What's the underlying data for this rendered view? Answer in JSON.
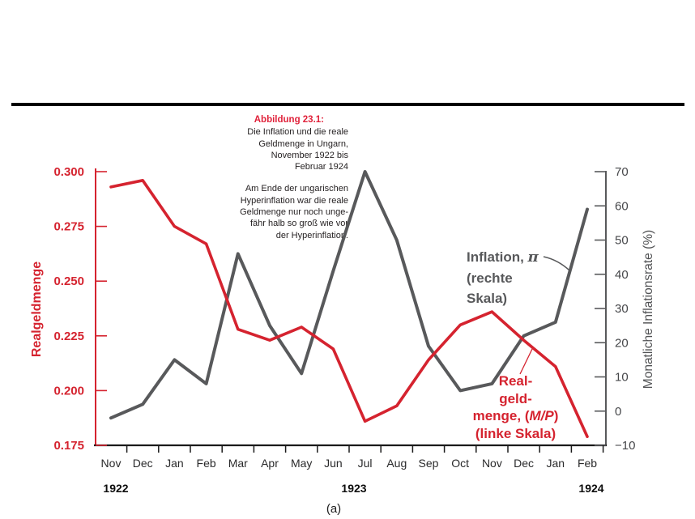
{
  "caption": {
    "title": "Abbildung 23.1:",
    "para1": [
      "Die Inflation und die reale",
      "Geldmenge in Ungarn,",
      "November 1922 bis",
      "Februar 1924"
    ],
    "para2": [
      "Am Ende der ungarischen",
      "Hyperinflation war die reale",
      "Geldmenge nur noch unge-",
      "fähr halb so groß wie vor",
      "der Hyperinflation."
    ]
  },
  "annotations": {
    "inflation": {
      "line1_pre": "Inflation, ",
      "line1_pi": "π",
      "line2": "(rechte",
      "line3": "Skala)"
    },
    "real_money": {
      "line1": "Real-",
      "line2": "geld-",
      "line3_pre": "menge, (",
      "line3_italic": "M/P",
      "line3_post": ")",
      "line4": "(linke Skala)"
    }
  },
  "subfigure_label": "(a)",
  "colors": {
    "red": "#d5232f",
    "gray_line": "#58595b",
    "right_axis_text": "#46474a",
    "month_text": "#2a2a2b",
    "year_text": "#0d0d0d",
    "x_axis": "#1a1a1a"
  },
  "chart_data": {
    "type": "line",
    "categories": [
      "Nov",
      "Dec",
      "Jan",
      "Feb",
      "Mar",
      "Apr",
      "May",
      "Jun",
      "Jul",
      "Aug",
      "Sep",
      "Oct",
      "Nov",
      "Dec",
      "Jan",
      "Feb"
    ],
    "year_labels": [
      "1922",
      "1923",
      "1924"
    ],
    "left_axis": {
      "title": "Realgeldmenge",
      "tick_labels": [
        "0.300",
        "0.275",
        "0.250",
        "0.225",
        "0.200",
        "0.175"
      ],
      "tick_values": [
        0.3,
        0.275,
        0.25,
        0.225,
        0.2,
        0.175
      ],
      "range": [
        0.175,
        0.3
      ]
    },
    "right_axis": {
      "title": "Monatliche Inflationsrate (%)",
      "tick_labels": [
        "70",
        "60",
        "50",
        "40",
        "30",
        "20",
        "10",
        "0",
        "−10"
      ],
      "tick_values": [
        70,
        60,
        50,
        40,
        30,
        20,
        10,
        0,
        -10
      ],
      "range": [
        -10,
        70
      ]
    },
    "series": [
      {
        "name": "Inflation, π (rechte Skala)",
        "axis": "right",
        "color": "#58595b",
        "values": [
          -2,
          2,
          15,
          8,
          46,
          25,
          11,
          41,
          70,
          50,
          19,
          6,
          8,
          22,
          26,
          59
        ]
      },
      {
        "name": "Realgeldmenge, (M/P) (linke Skala)",
        "axis": "left",
        "color": "#d5232f",
        "values": [
          0.293,
          0.296,
          0.275,
          0.267,
          0.228,
          0.223,
          0.229,
          0.219,
          0.186,
          0.193,
          0.214,
          0.23,
          0.236,
          0.223,
          0.211,
          0.179
        ]
      }
    ],
    "grid": false,
    "legend": "inline-annotations"
  }
}
